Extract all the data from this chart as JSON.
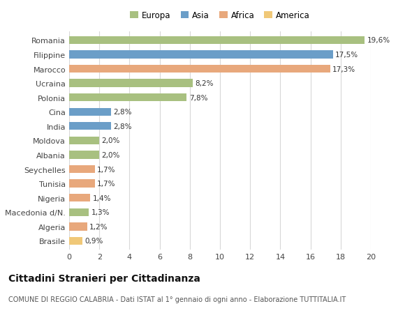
{
  "categories": [
    "Romania",
    "Filippine",
    "Marocco",
    "Ucraina",
    "Polonia",
    "Cina",
    "India",
    "Moldova",
    "Albania",
    "Seychelles",
    "Tunisia",
    "Nigeria",
    "Macedonia d/N.",
    "Algeria",
    "Brasile"
  ],
  "values": [
    19.6,
    17.5,
    17.3,
    8.2,
    7.8,
    2.8,
    2.8,
    2.0,
    2.0,
    1.7,
    1.7,
    1.4,
    1.3,
    1.2,
    0.9
  ],
  "labels": [
    "19,6%",
    "17,5%",
    "17,3%",
    "8,2%",
    "7,8%",
    "2,8%",
    "2,8%",
    "2,0%",
    "2,0%",
    "1,7%",
    "1,7%",
    "1,4%",
    "1,3%",
    "1,2%",
    "0,9%"
  ],
  "colors": [
    "#a8c080",
    "#6b9ec8",
    "#e8a87c",
    "#a8c080",
    "#a8c080",
    "#6b9ec8",
    "#6b9ec8",
    "#a8c080",
    "#a8c080",
    "#e8a87c",
    "#e8a87c",
    "#e8a87c",
    "#a8c080",
    "#e8a87c",
    "#f0c878"
  ],
  "continent": [
    "Europa",
    "Asia",
    "Africa",
    "Europa",
    "Europa",
    "Asia",
    "Asia",
    "Europa",
    "Europa",
    "Africa",
    "Africa",
    "Africa",
    "Europa",
    "Africa",
    "America"
  ],
  "legend_labels": [
    "Europa",
    "Asia",
    "Africa",
    "America"
  ],
  "legend_colors": [
    "#a8c080",
    "#6b9ec8",
    "#e8a87c",
    "#f0c878"
  ],
  "xlim": [
    0,
    20
  ],
  "xticks": [
    0,
    2,
    4,
    6,
    8,
    10,
    12,
    14,
    16,
    18,
    20
  ],
  "title": "Cittadini Stranieri per Cittadinanza",
  "subtitle": "COMUNE DI REGGIO CALABRIA - Dati ISTAT al 1° gennaio di ogni anno - Elaborazione TUTTITALIA.IT",
  "bg_color": "#ffffff",
  "plot_bg_color": "#ffffff",
  "grid_color": "#d8d8d8",
  "bar_height": 0.55,
  "label_fontsize": 7.5,
  "ytick_fontsize": 8,
  "xtick_fontsize": 8,
  "legend_fontsize": 8.5,
  "title_fontsize": 10,
  "subtitle_fontsize": 7
}
